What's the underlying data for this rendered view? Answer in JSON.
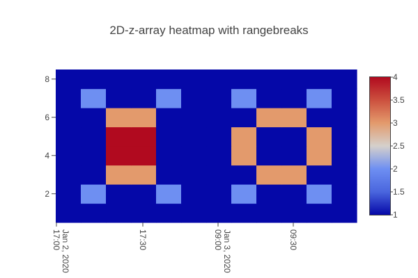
{
  "chart_data": {
    "type": "heatmap",
    "title": "2D-z-array heatmap with rangebreaks",
    "xlabel": "",
    "ylabel": "",
    "x_tick_labels": [
      "17:00\nJan 2, 2020",
      "17:30",
      "09:00\nJan 3, 2020",
      "09:30"
    ],
    "y_tick_labels": [
      "2",
      "4",
      "6",
      "8"
    ],
    "y_range": [
      0.5,
      8.5
    ],
    "z": [
      [
        1,
        1,
        1,
        1,
        1,
        1,
        1,
        1,
        1,
        1,
        1,
        1
      ],
      [
        1,
        2,
        1,
        1,
        2,
        1,
        1,
        2,
        1,
        1,
        2,
        1
      ],
      [
        1,
        1,
        3,
        3,
        1,
        1,
        1,
        1,
        3,
        3,
        1,
        1
      ],
      [
        1,
        1,
        4,
        4,
        1,
        1,
        1,
        3,
        1,
        1,
        3,
        1
      ],
      [
        1,
        1,
        4,
        4,
        1,
        1,
        1,
        3,
        1,
        1,
        3,
        1
      ],
      [
        1,
        1,
        3,
        3,
        1,
        1,
        1,
        1,
        3,
        3,
        1,
        1
      ],
      [
        1,
        2,
        1,
        1,
        2,
        1,
        1,
        2,
        1,
        1,
        2,
        1
      ],
      [
        1,
        1,
        1,
        1,
        1,
        1,
        1,
        1,
        1,
        1,
        1,
        1
      ]
    ],
    "colorscale": "RdBu-like (blue to red)",
    "colorbar": {
      "min": 1,
      "max": 4,
      "tick_labels": [
        "1",
        "1.5",
        "2",
        "2.5",
        "3",
        "3.5",
        "4"
      ],
      "tick_values": [
        1,
        1.5,
        2,
        2.5,
        3,
        3.5,
        4
      ]
    },
    "value_colors": {
      "1": "#0508a8",
      "2": "#6e8ff2",
      "3": "#e39a6c",
      "4": "#b10a1f"
    },
    "grid": false,
    "legend": "colorbar on right"
  }
}
